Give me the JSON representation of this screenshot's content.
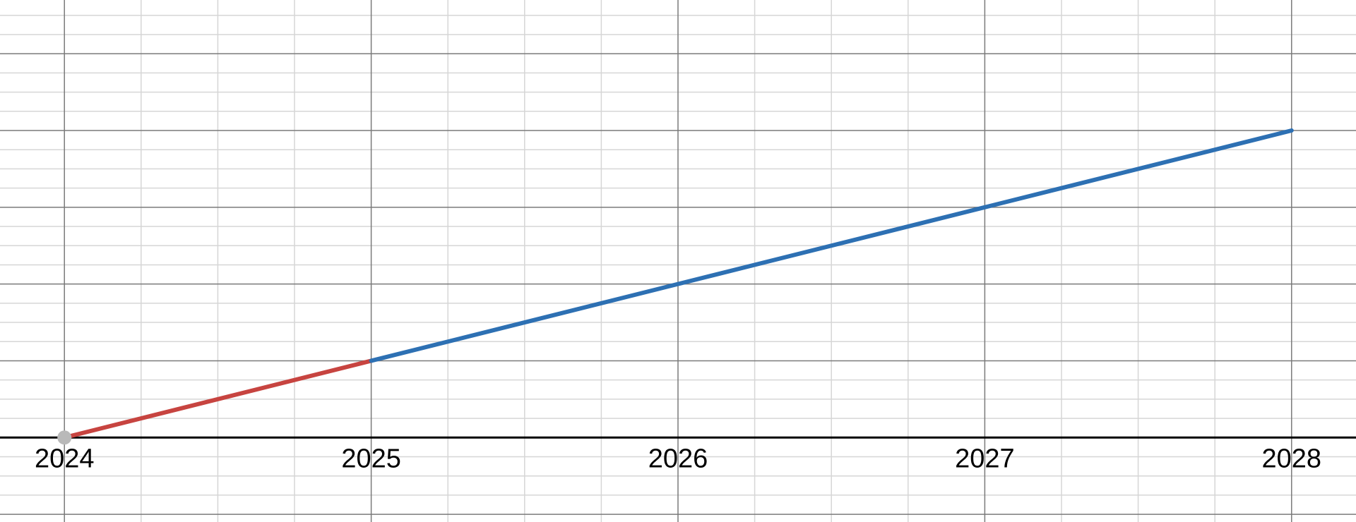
{
  "chart_data": {
    "type": "line",
    "title": "",
    "xlabel": "",
    "ylabel": "",
    "grid": true,
    "xlim": [
      2023.79,
      2028.21
    ],
    "ylim": [
      -0.55,
      2.85
    ],
    "x_ticks": [
      "2024",
      "2025",
      "2026",
      "2027",
      "2028"
    ],
    "series": [
      {
        "color": "#c74440",
        "points": [
          [
            2024,
            0
          ],
          [
            2025,
            0.5
          ]
        ]
      },
      {
        "color": "#2d70b3",
        "points": [
          [
            2025,
            0.5
          ],
          [
            2026,
            1
          ],
          [
            2027,
            1.5
          ],
          [
            2028,
            2
          ]
        ]
      }
    ],
    "marker": {
      "x": 2024,
      "y": 0,
      "color": "#b9b9b9"
    }
  }
}
